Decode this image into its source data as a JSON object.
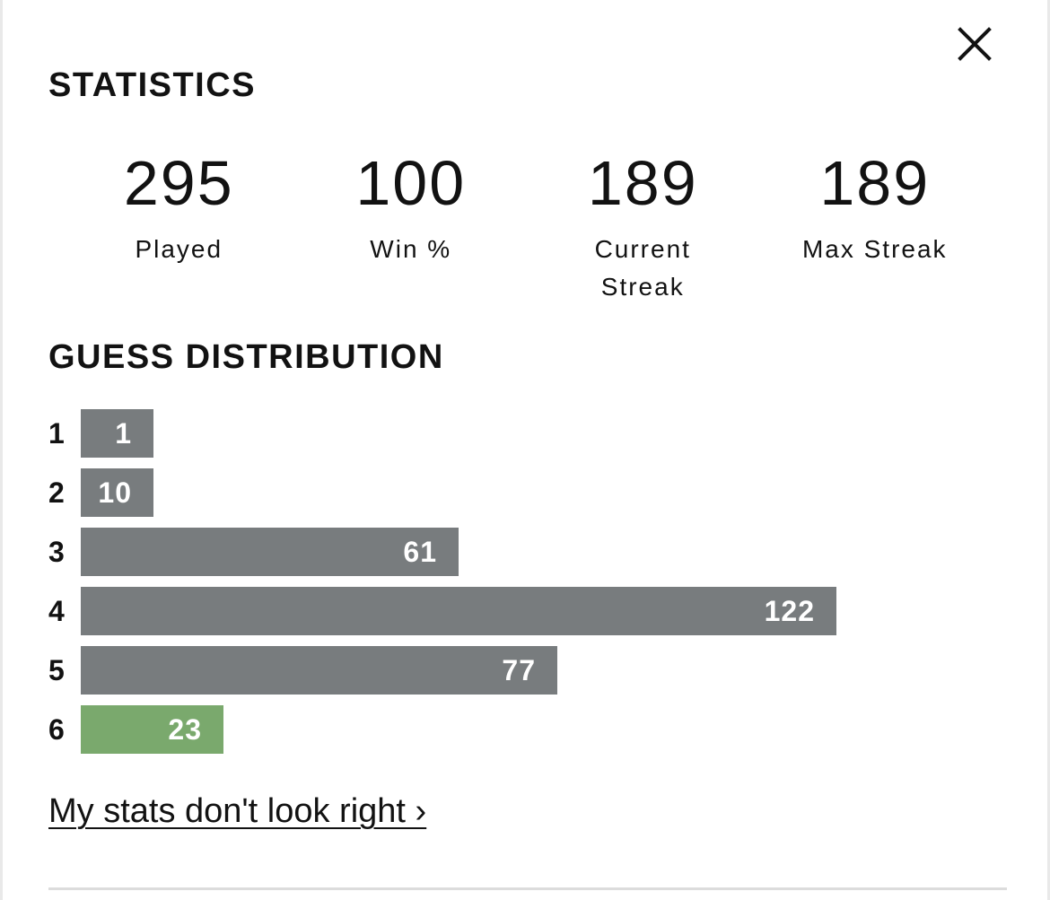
{
  "modal": {
    "close_icon": "close-icon"
  },
  "statistics": {
    "title": "STATISTICS",
    "items": [
      {
        "value": "295",
        "label": "Played"
      },
      {
        "value": "100",
        "label": "Win %"
      },
      {
        "value": "189",
        "label": "Current\nStreak"
      },
      {
        "value": "189",
        "label": "Max Streak"
      }
    ]
  },
  "distribution": {
    "title": "GUESS DISTRIBUTION",
    "bar_color": "#787c7e",
    "highlight_color": "#7aa96d",
    "max_count": 122,
    "rows": [
      {
        "guess": "1",
        "count": 1,
        "highlight": false
      },
      {
        "guess": "2",
        "count": 10,
        "highlight": false
      },
      {
        "guess": "3",
        "count": 61,
        "highlight": false
      },
      {
        "guess": "4",
        "count": 122,
        "highlight": false
      },
      {
        "guess": "5",
        "count": 77,
        "highlight": false
      },
      {
        "guess": "6",
        "count": 23,
        "highlight": true
      }
    ]
  },
  "footer": {
    "link_text": "My stats don't look right ›"
  }
}
